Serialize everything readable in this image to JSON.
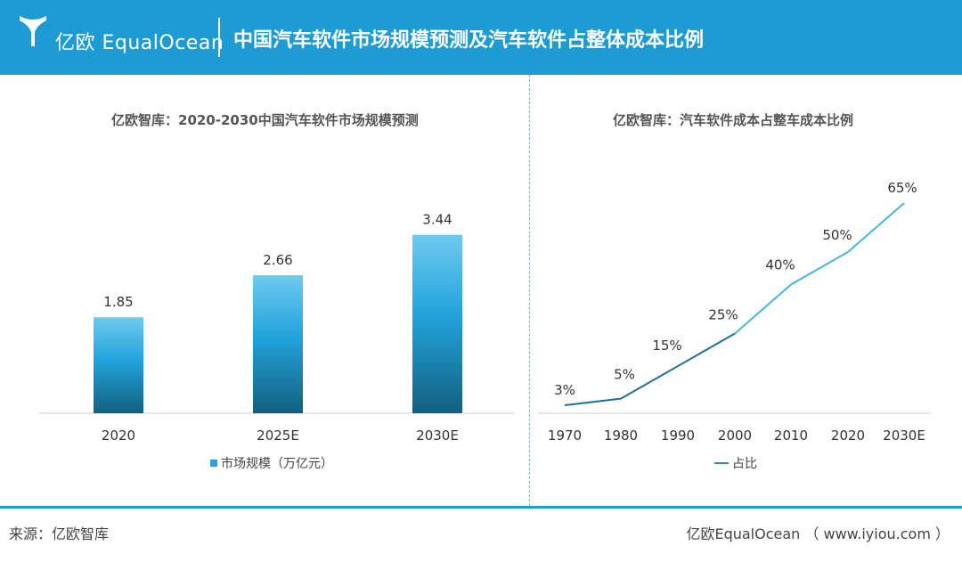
{
  "header": {
    "brand": "亿欧 EqualOcean",
    "title": "中国汽车软件市场规模预测及汽车软件占整体成本比例"
  },
  "colors": {
    "header_bg": "#1d9bd3",
    "bar_top": "#6fcaee",
    "bar_mid": "#22a3db",
    "bar_bottom": "#13607f",
    "line": "#2b8fbd"
  },
  "chart_data": [
    {
      "type": "bar",
      "title": "亿欧智库：2020-2030中国汽车软件市场规模预测",
      "categories": [
        "2020",
        "2025E",
        "2030E"
      ],
      "series": [
        {
          "name": "市场规模（万亿元）",
          "values": [
            1.85,
            2.66,
            3.44
          ]
        }
      ],
      "data_labels": [
        "1.85",
        "2.66",
        "3.44"
      ],
      "ylim": [
        0,
        4
      ],
      "legend": "bottom",
      "grid": false
    },
    {
      "type": "line",
      "title": "亿欧智库：汽车软件成本占整车成本比例",
      "categories": [
        "1970",
        "1980",
        "1990",
        "2000",
        "2010",
        "2020",
        "2030E"
      ],
      "series": [
        {
          "name": "占比",
          "values": [
            3,
            5,
            15,
            25,
            40,
            50,
            65
          ]
        }
      ],
      "data_labels": [
        "3%",
        "5%",
        "15%",
        "25%",
        "40%",
        "50%",
        "65%"
      ],
      "ylim": [
        0,
        75
      ],
      "legend": "bottom",
      "grid": false
    }
  ],
  "footer": {
    "source": "来源：亿欧智库",
    "credit": "亿欧EqualOcean （ www.iyiou.com ）"
  }
}
